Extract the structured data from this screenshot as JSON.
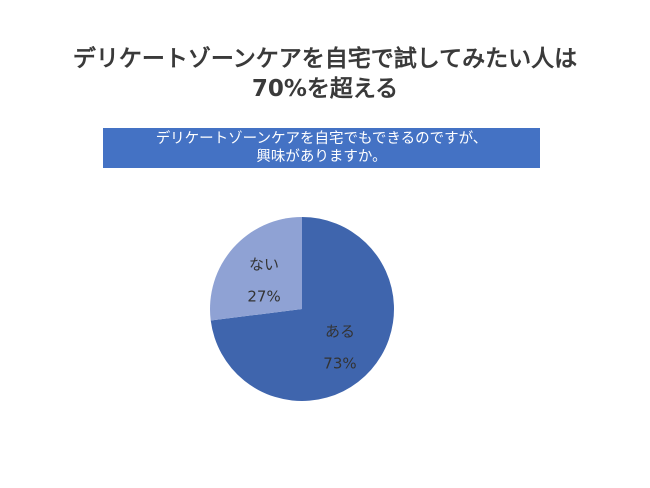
{
  "title": {
    "line1": "デリケートゾーンケアを自宅で試してみたい人は",
    "line2": "70%を超える"
  },
  "question": {
    "line1": "デリケートゾーンケアを自宅でもできるのですが、",
    "line2": "興味がありますか。"
  },
  "colors": {
    "question_bg": "#4472c4",
    "slice_yes": "#3f65ad",
    "slice_no": "#8fa2d4",
    "title_text": "#3a3a3a"
  },
  "chart_data": {
    "type": "pie",
    "categories": [
      "ある",
      "ない"
    ],
    "values": [
      73,
      27
    ],
    "value_labels": [
      "73%",
      "27%"
    ],
    "colors": [
      "#3f65ad",
      "#8fa2d4"
    ]
  }
}
